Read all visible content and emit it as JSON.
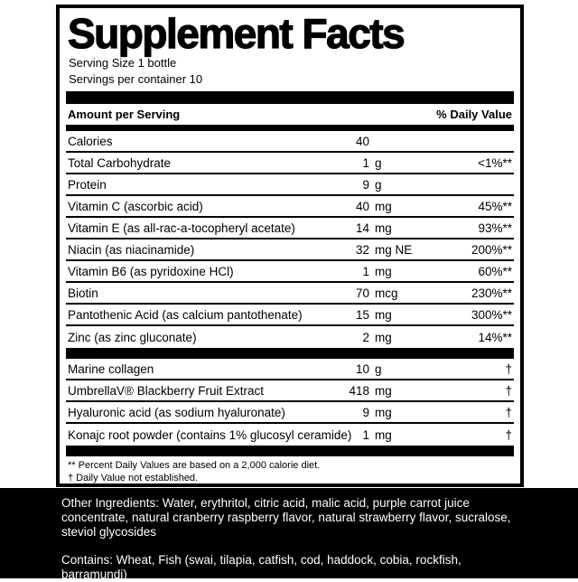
{
  "panel": {
    "title": "Supplement Facts",
    "serving_size": "Serving Size 1 bottle",
    "servings_per_container": "Servings per container 10",
    "header": {
      "amount_label": "Amount per Serving",
      "dv_label": "% Daily Value"
    },
    "rows": [
      {
        "name": "Calories",
        "value": "40",
        "unit": "",
        "dv": ""
      },
      {
        "name": "Total Carbohydrate",
        "value": "1",
        "unit": "g",
        "dv": "<1%**"
      },
      {
        "name": "Protein",
        "value": "9",
        "unit": "g",
        "dv": ""
      },
      {
        "name": "Vitamin C (ascorbic acid)",
        "value": "40",
        "unit": "mg",
        "dv": "45%**"
      },
      {
        "name": "Vitamin E (as all-rac-a-tocopheryl acetate)",
        "value": "14",
        "unit": "mg",
        "dv": "93%**"
      },
      {
        "name": "Niacin (as niacinamide)",
        "value": "32",
        "unit": "mg NE",
        "dv": "200%**"
      },
      {
        "name": "Vitamin B6 (as pyridoxine HCl)",
        "value": "1",
        "unit": "mg",
        "dv": "60%**"
      },
      {
        "name": "Biotin",
        "value": "70",
        "unit": "mcg",
        "dv": "230%**"
      },
      {
        "name": "Pantothenic Acid (as calcium pantothenate)",
        "value": "15",
        "unit": "mg",
        "dv": "300%**"
      },
      {
        "name": "Zinc (as zinc gluconate)",
        "value": "2",
        "unit": "mg",
        "dv": "14%**"
      }
    ],
    "rows2": [
      {
        "name": "Marine collagen",
        "value": "10",
        "unit": "g",
        "dv": "†"
      },
      {
        "name": "UmbrellaV® Blackberry Fruit Extract",
        "value": "418",
        "unit": "mg",
        "dv": "†"
      },
      {
        "name": "Hyaluronic acid (as sodium hyaluronate)",
        "value": "9",
        "unit": "mg",
        "dv": "†"
      },
      {
        "name": "Konajc root powder (contains 1% glucosyl ceramide)",
        "value": "1",
        "unit": "mg",
        "dv": "†"
      }
    ],
    "footnotes": [
      "** Percent Daily Values are based on a 2,000 calorie diet.",
      "† Daily Value not established."
    ]
  },
  "footer": {
    "other_ingredients": "Other Ingredients: Water, erythritol, citric acid, malic acid, purple carrot juice concentrate, natural cranberry raspberry flavor, natural strawberry flavor, sucralose, steviol glycosides",
    "contains": "Contains: Wheat, Fish (swai, tilapia, catfish, cod, haddock, cobia, rockfish, barramundi)"
  },
  "colors": {
    "panel_bg": "#ffffff",
    "text": "#000000",
    "footer_bg": "#000000",
    "footer_text": "#ffffff"
  }
}
